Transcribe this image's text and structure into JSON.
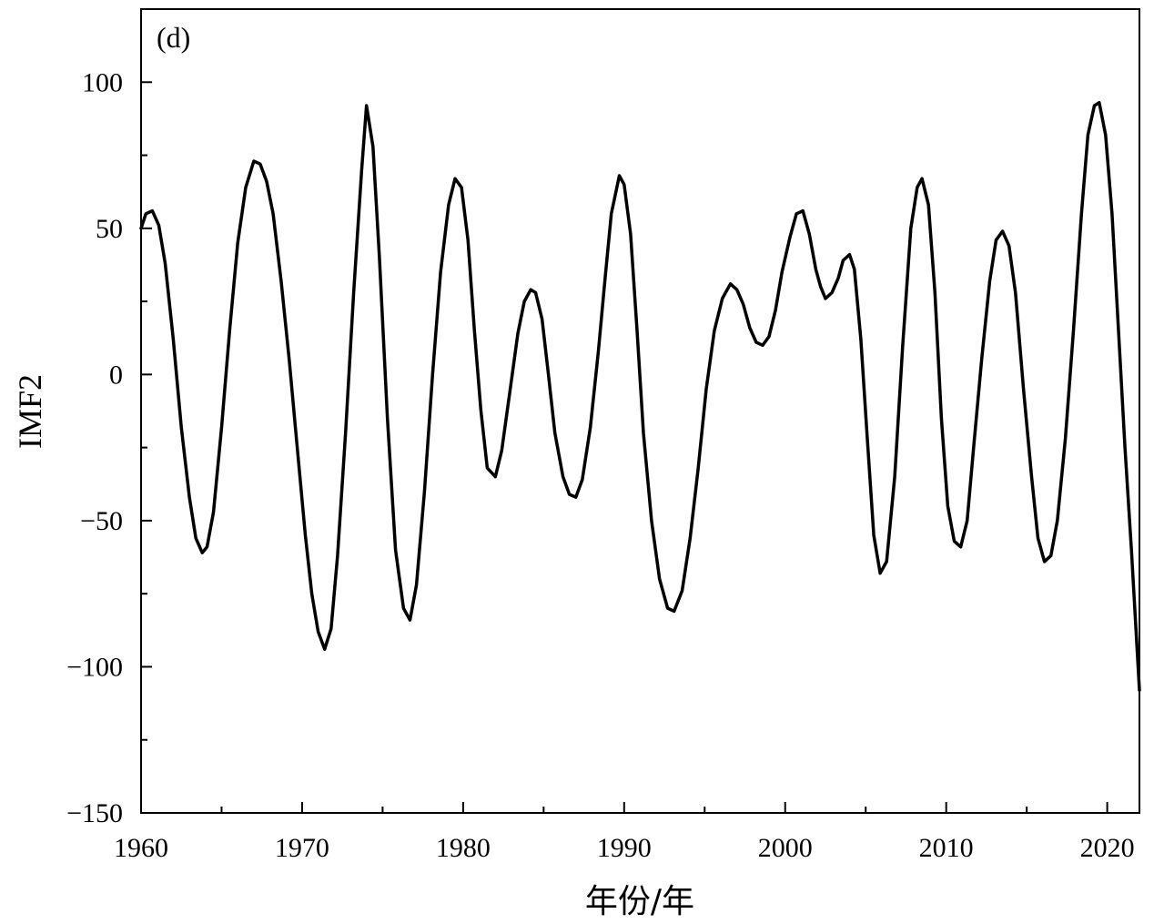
{
  "chart_data": {
    "type": "line",
    "panel_label": "(d)",
    "xlabel": "年份/年",
    "ylabel": "IMF2",
    "xlim": [
      1960,
      2022
    ],
    "ylim": [
      -150,
      125
    ],
    "x_ticks": [
      1960,
      1970,
      1980,
      1990,
      2000,
      2010,
      2020
    ],
    "x_tick_labels": [
      "1960",
      "1970",
      "1980",
      "1990",
      "2000",
      "2010",
      "2020"
    ],
    "y_ticks": [
      100,
      50,
      0,
      -50,
      -100,
      -150
    ],
    "y_tick_labels": [
      "100",
      "50",
      "0",
      "−50",
      "−100",
      "−150"
    ],
    "x_minor_ticks": [
      1965,
      1975,
      1985,
      1995,
      2005,
      2015
    ],
    "y_minor_ticks": [
      75,
      25,
      -25,
      -75,
      -125
    ],
    "grid": false,
    "series": [
      {
        "color": "#000000",
        "points": [
          [
            1960.0,
            50
          ],
          [
            1960.3,
            55
          ],
          [
            1960.7,
            56
          ],
          [
            1961.1,
            51
          ],
          [
            1961.5,
            38
          ],
          [
            1962.0,
            12
          ],
          [
            1962.5,
            -18
          ],
          [
            1963.0,
            -42
          ],
          [
            1963.4,
            -56
          ],
          [
            1963.8,
            -61
          ],
          [
            1964.1,
            -59
          ],
          [
            1964.5,
            -47
          ],
          [
            1965.0,
            -18
          ],
          [
            1965.5,
            15
          ],
          [
            1966.0,
            45
          ],
          [
            1966.5,
            64
          ],
          [
            1967.0,
            73
          ],
          [
            1967.4,
            72
          ],
          [
            1967.8,
            66
          ],
          [
            1968.2,
            55
          ],
          [
            1968.7,
            32
          ],
          [
            1969.2,
            5
          ],
          [
            1969.7,
            -25
          ],
          [
            1970.2,
            -55
          ],
          [
            1970.6,
            -75
          ],
          [
            1971.0,
            -88
          ],
          [
            1971.4,
            -94
          ],
          [
            1971.8,
            -87
          ],
          [
            1972.2,
            -62
          ],
          [
            1972.7,
            -20
          ],
          [
            1973.2,
            28
          ],
          [
            1973.7,
            70
          ],
          [
            1974.0,
            92
          ],
          [
            1974.4,
            78
          ],
          [
            1974.8,
            40
          ],
          [
            1975.3,
            -15
          ],
          [
            1975.8,
            -60
          ],
          [
            1976.3,
            -80
          ],
          [
            1976.7,
            -84
          ],
          [
            1977.1,
            -72
          ],
          [
            1977.6,
            -40
          ],
          [
            1978.1,
            0
          ],
          [
            1978.6,
            35
          ],
          [
            1979.1,
            58
          ],
          [
            1979.5,
            67
          ],
          [
            1979.9,
            64
          ],
          [
            1980.3,
            46
          ],
          [
            1980.7,
            15
          ],
          [
            1981.1,
            -12
          ],
          [
            1981.5,
            -32
          ],
          [
            1982.0,
            -35
          ],
          [
            1982.4,
            -26
          ],
          [
            1982.9,
            -6
          ],
          [
            1983.4,
            14
          ],
          [
            1983.8,
            25
          ],
          [
            1984.2,
            29
          ],
          [
            1984.5,
            28
          ],
          [
            1984.9,
            19
          ],
          [
            1985.3,
            0
          ],
          [
            1985.7,
            -20
          ],
          [
            1986.2,
            -35
          ],
          [
            1986.6,
            -41
          ],
          [
            1987.0,
            -42
          ],
          [
            1987.4,
            -36
          ],
          [
            1987.9,
            -18
          ],
          [
            1988.4,
            8
          ],
          [
            1988.8,
            32
          ],
          [
            1989.2,
            55
          ],
          [
            1989.7,
            68
          ],
          [
            1990.0,
            65
          ],
          [
            1990.4,
            48
          ],
          [
            1990.8,
            15
          ],
          [
            1991.2,
            -20
          ],
          [
            1991.7,
            -50
          ],
          [
            1992.2,
            -70
          ],
          [
            1992.7,
            -80
          ],
          [
            1993.1,
            -81
          ],
          [
            1993.6,
            -74
          ],
          [
            1994.1,
            -56
          ],
          [
            1994.6,
            -32
          ],
          [
            1995.1,
            -5
          ],
          [
            1995.6,
            15
          ],
          [
            1996.1,
            26
          ],
          [
            1996.6,
            31
          ],
          [
            1997.0,
            29
          ],
          [
            1997.4,
            24
          ],
          [
            1997.8,
            16
          ],
          [
            1998.2,
            11
          ],
          [
            1998.6,
            10
          ],
          [
            1999.0,
            13
          ],
          [
            1999.4,
            22
          ],
          [
            1999.8,
            35
          ],
          [
            2000.3,
            47
          ],
          [
            2000.7,
            55
          ],
          [
            2001.1,
            56
          ],
          [
            2001.5,
            48
          ],
          [
            2001.9,
            36
          ],
          [
            2002.2,
            30
          ],
          [
            2002.5,
            26
          ],
          [
            2002.9,
            28
          ],
          [
            2003.3,
            33
          ],
          [
            2003.6,
            39
          ],
          [
            2004.0,
            41
          ],
          [
            2004.3,
            36
          ],
          [
            2004.7,
            12
          ],
          [
            2005.1,
            -22
          ],
          [
            2005.5,
            -55
          ],
          [
            2005.9,
            -68
          ],
          [
            2006.3,
            -64
          ],
          [
            2006.8,
            -35
          ],
          [
            2007.3,
            10
          ],
          [
            2007.8,
            50
          ],
          [
            2008.2,
            64
          ],
          [
            2008.5,
            67
          ],
          [
            2008.9,
            58
          ],
          [
            2009.3,
            28
          ],
          [
            2009.7,
            -15
          ],
          [
            2010.1,
            -45
          ],
          [
            2010.5,
            -57
          ],
          [
            2010.9,
            -59
          ],
          [
            2011.3,
            -50
          ],
          [
            2011.7,
            -25
          ],
          [
            2012.2,
            5
          ],
          [
            2012.7,
            32
          ],
          [
            2013.1,
            46
          ],
          [
            2013.5,
            49
          ],
          [
            2013.9,
            44
          ],
          [
            2014.3,
            28
          ],
          [
            2014.8,
            -5
          ],
          [
            2015.3,
            -35
          ],
          [
            2015.7,
            -56
          ],
          [
            2016.1,
            -64
          ],
          [
            2016.5,
            -62
          ],
          [
            2016.9,
            -50
          ],
          [
            2017.4,
            -22
          ],
          [
            2017.9,
            15
          ],
          [
            2018.4,
            55
          ],
          [
            2018.8,
            82
          ],
          [
            2019.2,
            92
          ],
          [
            2019.5,
            93
          ],
          [
            2019.9,
            82
          ],
          [
            2020.3,
            55
          ],
          [
            2020.7,
            15
          ],
          [
            2021.1,
            -25
          ],
          [
            2021.5,
            -60
          ],
          [
            2022.0,
            -108
          ]
        ]
      }
    ]
  }
}
